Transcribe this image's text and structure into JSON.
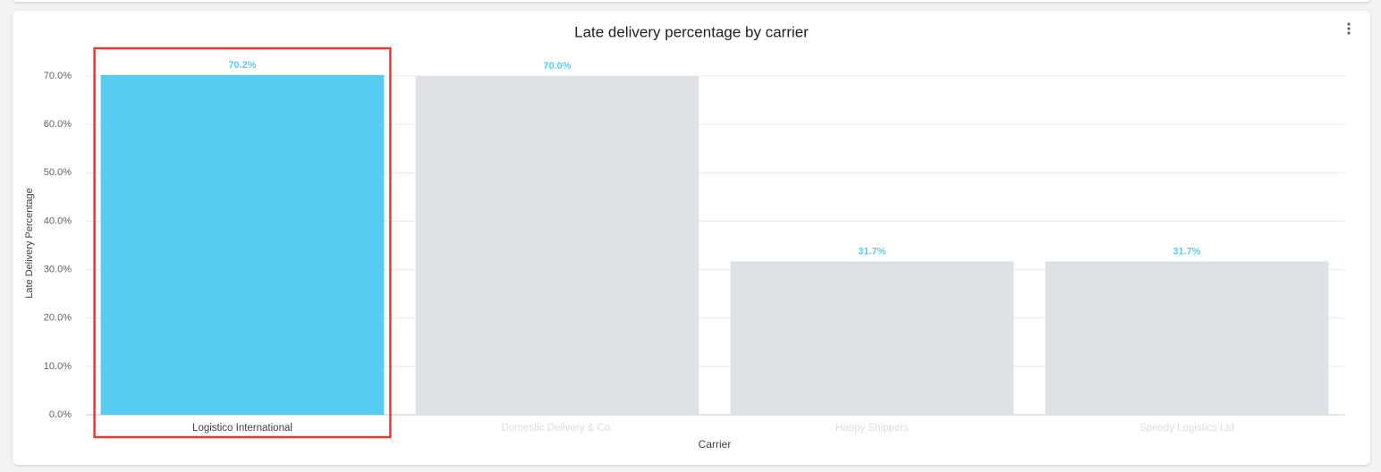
{
  "chart_data": {
    "type": "bar",
    "title": "Late delivery percentage by carrier",
    "x_label": "Carrier",
    "y_label": "Late Delivery Percentage",
    "categories": [
      "Logistico International",
      "Domestic Delivery & Co.",
      "Happy Shippers",
      "Speedy Logistics Ltd"
    ],
    "values": [
      70.2,
      70.0,
      31.7,
      31.7
    ],
    "value_labels": [
      "70.2%",
      "70.0%",
      "31.7%",
      "31.7%"
    ],
    "colors": [
      "#56ccf2",
      "#dee1e6",
      "#dee1e6",
      "#dee1e6"
    ],
    "ylim": [
      0,
      70
    ],
    "yticks": [
      {
        "value": 0,
        "label": "0.0%"
      },
      {
        "value": 10,
        "label": "10.0%"
      },
      {
        "value": 20,
        "label": "20.0%"
      },
      {
        "value": 30,
        "label": "30.0%"
      },
      {
        "value": 40,
        "label": "40.0%"
      },
      {
        "value": 50,
        "label": "50.0%"
      },
      {
        "value": 60,
        "label": "60.0%"
      },
      {
        "value": 70,
        "label": "70.0%"
      }
    ],
    "grid": true
  }
}
